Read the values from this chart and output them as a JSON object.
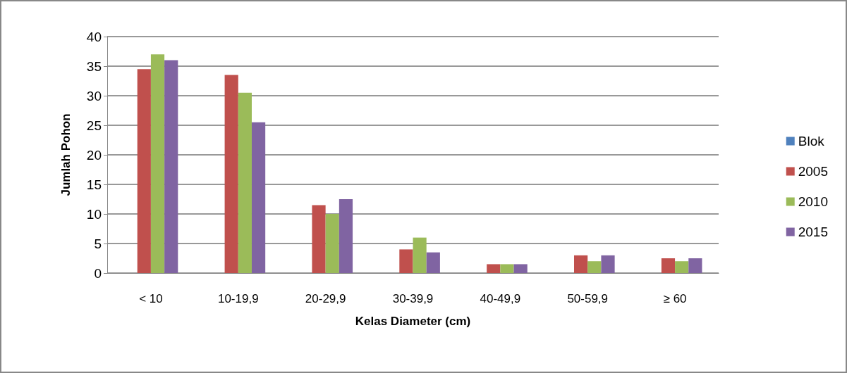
{
  "chart_data": {
    "type": "bar",
    "xlabel": "Kelas Diameter (cm)",
    "ylabel": "Jumlah Pohon",
    "categories": [
      "< 10",
      "10-19,9",
      "20-29,9",
      "30-39,9",
      "40-49,9",
      "50-59,9",
      "≥ 60"
    ],
    "series": [
      {
        "name": "Blok",
        "color": "#4f81bd",
        "values": [
          0,
          0,
          0,
          0,
          0,
          0,
          0
        ]
      },
      {
        "name": "2005",
        "color": "#c0504d",
        "values": [
          34.5,
          33.5,
          11.5,
          4,
          1.5,
          3,
          2.5
        ]
      },
      {
        "name": "2010",
        "color": "#9bbb59",
        "values": [
          37,
          30.5,
          10,
          6,
          1.5,
          2,
          2
        ]
      },
      {
        "name": "2015",
        "color": "#8064a2",
        "values": [
          36,
          25.5,
          12.5,
          3.5,
          1.5,
          3,
          2.5
        ]
      }
    ],
    "ylim": [
      0,
      40
    ],
    "yticks": [
      0,
      5,
      10,
      15,
      20,
      25,
      30,
      35,
      40
    ],
    "grid": "y",
    "legend": "right"
  }
}
